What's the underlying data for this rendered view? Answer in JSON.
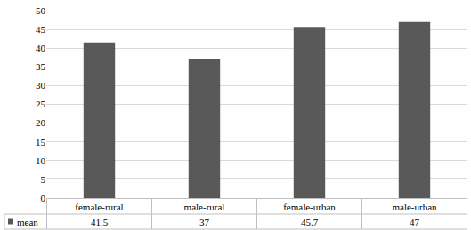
{
  "chart_data": {
    "type": "bar",
    "categories": [
      "female-rural",
      "male-rural",
      "female-urban",
      "male-urban"
    ],
    "series": [
      {
        "name": "mean",
        "color": "#595959",
        "values": [
          41.5,
          37,
          45.7,
          47
        ]
      }
    ],
    "ylim": [
      0,
      50
    ],
    "yticks": [
      0,
      5,
      10,
      15,
      20,
      25,
      30,
      35,
      40,
      45,
      50
    ],
    "grid": true
  }
}
